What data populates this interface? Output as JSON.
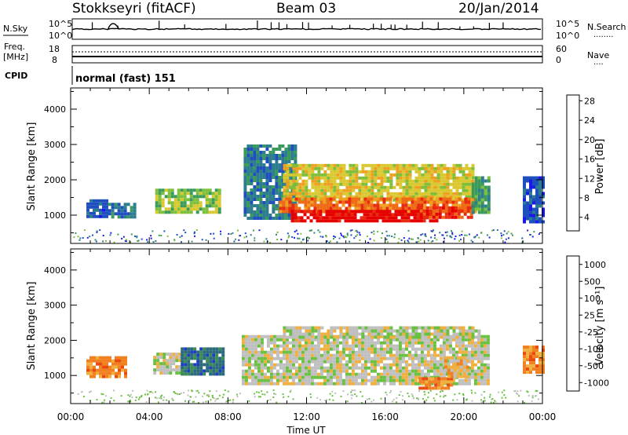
{
  "header": {
    "station": "Stokkseyri (fitACF)",
    "beam": "Beam 03",
    "date": "20/Jan/2014"
  },
  "nsky_panel": {
    "label": "N.Sky",
    "y_ticks_left": [
      "10^5",
      "10^0"
    ],
    "y_ticks_right": [
      "10^5",
      "10^0"
    ],
    "right_label": "N.Search",
    "right_line": "........"
  },
  "freq_panel": {
    "label_line1": "Freq.",
    "label_line2": "[MHz]",
    "y_ticks_left": [
      "18",
      "8"
    ],
    "y_ticks_right": [
      "60",
      "0"
    ],
    "right_label": "Nave",
    "right_line": "...."
  },
  "cpid_panel": {
    "label": "CPID",
    "mode_text": "normal (fast) 151"
  },
  "chart_data": [
    {
      "type": "heatmap",
      "name": "power",
      "ylabel": "Slant Range [km]",
      "yticks": [
        "1000",
        "2000",
        "3000",
        "4000"
      ],
      "ylim": [
        200,
        4600
      ],
      "xlim_hours": [
        0,
        24
      ],
      "colorbar": {
        "label": "Power [dB]",
        "tick_labels": [
          "4",
          "8",
          "12",
          "16",
          "20",
          "24",
          "28"
        ],
        "colors": [
          "#1a1ae6",
          "#1f4fbf",
          "#2c7d8e",
          "#3a9a5a",
          "#7dbf3a",
          "#d9c830",
          "#f0a020",
          "#ee6a14",
          "#e82a10",
          "#e60000"
        ]
      },
      "regions": [
        {
          "t": [
            0.8,
            1.9
          ],
          "r": [
            1000,
            1450
          ],
          "level": 1
        },
        {
          "t": [
            1.9,
            3.2
          ],
          "r": [
            950,
            1350
          ],
          "level": 2
        },
        {
          "t": [
            4.3,
            7.6
          ],
          "r": [
            1050,
            1750
          ],
          "level": 4
        },
        {
          "t": [
            8.8,
            11.5
          ],
          "r": [
            900,
            3000
          ],
          "level": 2
        },
        {
          "t": [
            10.8,
            20.4
          ],
          "r": [
            1400,
            2450
          ],
          "level": 5
        },
        {
          "t": [
            10.6,
            20.6
          ],
          "r": [
            1100,
            1500
          ],
          "level": 7
        },
        {
          "t": [
            11.2,
            18.6
          ],
          "r": [
            850,
            1150
          ],
          "level": 9
        },
        {
          "t": [
            17.6,
            20.4
          ],
          "r": [
            950,
            1250
          ],
          "level": 8
        },
        {
          "t": [
            20.4,
            21.3
          ],
          "r": [
            1100,
            2100
          ],
          "level": 3
        },
        {
          "t": [
            23.0,
            24.0
          ],
          "r": [
            850,
            2100
          ],
          "level": 1
        }
      ]
    },
    {
      "type": "heatmap",
      "name": "velocity",
      "ylabel": "Slant Range [km]",
      "yticks": [
        "1000",
        "2000",
        "3000",
        "4000"
      ],
      "ylim": [
        200,
        4600
      ],
      "xlim_hours": [
        0,
        24
      ],
      "xticks": [
        "00:00",
        "04:00",
        "08:00",
        "12:00",
        "16:00",
        "20:00",
        "00:00"
      ],
      "xlabel": "Time UT",
      "colorbar": {
        "label": "Velocity [m s⁻¹]",
        "tick_labels": [
          "1000",
          "500",
          "100",
          "25",
          "-25",
          "-100",
          "-500",
          "-1000"
        ],
        "colors": [
          "#1f3fbf",
          "#2a6a7a",
          "#3a8a5a",
          "#6ac040",
          "#bfbfbf",
          "#f0b040",
          "#f08020",
          "#e84a10",
          "#e60000"
        ]
      },
      "regions": [
        {
          "t": [
            0.8,
            2.8
          ],
          "r": [
            950,
            1550
          ],
          "level": 6
        },
        {
          "t": [
            4.2,
            5.6
          ],
          "r": [
            1100,
            1650
          ],
          "level": 4
        },
        {
          "t": [
            5.6,
            7.8
          ],
          "r": [
            1050,
            1800
          ],
          "level": 1
        },
        {
          "t": [
            8.7,
            21.3
          ],
          "r": [
            800,
            2150
          ],
          "level": 4
        },
        {
          "t": [
            10.8,
            20.8
          ],
          "r": [
            2100,
            2400
          ],
          "level": 4
        },
        {
          "t": [
            17.7,
            19.4
          ],
          "r": [
            600,
            950
          ],
          "level": 6
        },
        {
          "t": [
            19.0,
            20.2
          ],
          "r": [
            1000,
            1550
          ],
          "level": 5
        },
        {
          "t": [
            23.0,
            24.0
          ],
          "r": [
            1050,
            1850
          ],
          "level": 6
        }
      ]
    }
  ]
}
